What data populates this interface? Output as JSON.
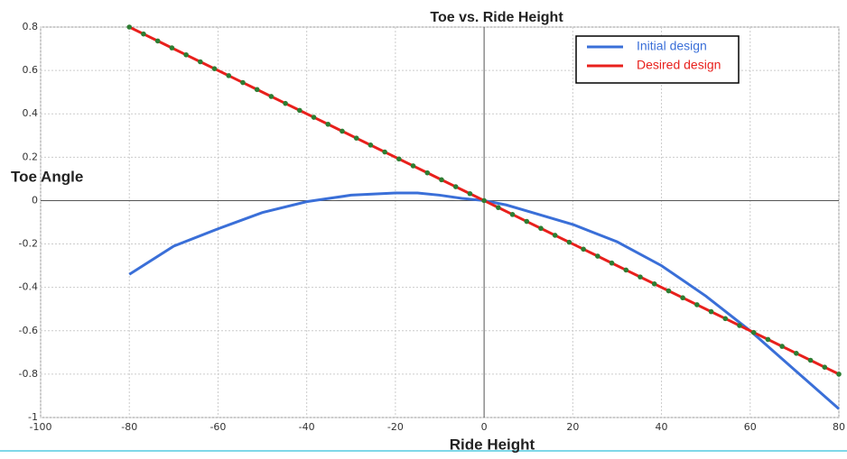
{
  "chart_data": {
    "type": "line",
    "title": "Toe vs. Ride Height",
    "xlabel": "Ride Height",
    "ylabel": "Toe Angle",
    "xlim": [
      -100,
      80
    ],
    "ylim": [
      -1,
      0.8
    ],
    "xticks": [
      -100,
      -80,
      -60,
      -40,
      -20,
      0,
      20,
      40,
      60,
      80
    ],
    "yticks": [
      -1,
      -0.8,
      -0.6,
      -0.4,
      -0.2,
      0,
      0.2,
      0.4,
      0.6,
      0.8
    ],
    "grid": true,
    "legend": "upper right",
    "series": [
      {
        "name": "Initial design",
        "color": "#3a6fd8",
        "x": [
          -80,
          -70,
          -60,
          -50,
          -40,
          -35,
          -30,
          -20,
          -15,
          -10,
          -5,
          0,
          5,
          10,
          20,
          30,
          40,
          50,
          60,
          70,
          80
        ],
        "values": [
          -0.34,
          -0.21,
          -0.13,
          -0.055,
          -0.005,
          0.01,
          0.025,
          0.035,
          0.035,
          0.025,
          0.01,
          0,
          -0.02,
          -0.05,
          -0.11,
          -0.19,
          -0.3,
          -0.44,
          -0.6,
          -0.78,
          -0.96
        ]
      },
      {
        "name": "Desired design",
        "color": "#e8201c",
        "marker_color": "#2e7d32",
        "x": [
          -80,
          -76.8,
          -73.6,
          -70.4,
          -67.2,
          -64,
          -60.8,
          -57.6,
          -54.4,
          -51.2,
          -48,
          -44.8,
          -41.6,
          -38.4,
          -35.2,
          -32,
          -28.8,
          -25.6,
          -22.4,
          -19.2,
          -16,
          -12.8,
          -9.6,
          -6.4,
          -3.2,
          0,
          3.2,
          6.4,
          9.6,
          12.8,
          16,
          19.2,
          22.4,
          25.6,
          28.8,
          32,
          35.2,
          38.4,
          41.6,
          44.8,
          48,
          51.2,
          54.4,
          57.6,
          60.8,
          64,
          67.2,
          70.4,
          73.6,
          76.8,
          80
        ],
        "values": [
          0.8,
          0.768,
          0.736,
          0.704,
          0.672,
          0.64,
          0.608,
          0.576,
          0.544,
          0.512,
          0.48,
          0.448,
          0.416,
          0.384,
          0.352,
          0.32,
          0.288,
          0.256,
          0.224,
          0.192,
          0.16,
          0.128,
          0.096,
          0.064,
          0.032,
          0,
          -0.032,
          -0.064,
          -0.096,
          -0.128,
          -0.16,
          -0.192,
          -0.224,
          -0.256,
          -0.288,
          -0.32,
          -0.352,
          -0.384,
          -0.416,
          -0.448,
          -0.48,
          -0.512,
          -0.544,
          -0.576,
          -0.608,
          -0.64,
          -0.672,
          -0.704,
          -0.736,
          -0.768,
          -0.8
        ]
      }
    ]
  }
}
